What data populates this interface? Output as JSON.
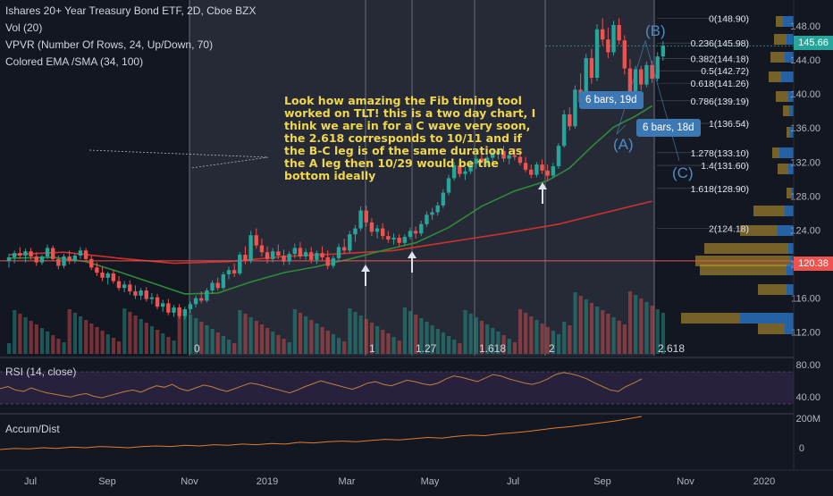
{
  "legend": {
    "title": "Ishares 20+ Year Treasury Bond ETF, 2D, Cboe BZX",
    "vol": "Vol (20)",
    "vpvr": "VPVR (Number Of Rows, 24, Up/Down, 70)",
    "ema": "Colored EMA /SMA (34, 100)"
  },
  "annotation": "Look how amazing the Fib timing tool worked on TLT! this is a two day chart, I think we are in for a C wave very soon, the 2.618 corresponds to 10/11 and if the B-C leg is of the same duration as the A leg then 10/29 would be the bottom ideally",
  "badges": {
    "b1": "6 bars, 19d",
    "b2": "6 bars, 18d"
  },
  "wave_labels": [
    "(A)",
    "(B)",
    "(C)"
  ],
  "fib_time_labels": [
    "0",
    "1",
    "1.27",
    "1.618",
    "2",
    "2.618"
  ],
  "fib_levels": [
    {
      "label": "0(148.90)",
      "price": 148.9
    },
    {
      "label": "0.236(145.98)",
      "price": 145.98
    },
    {
      "label": "0.382(144.18)",
      "price": 144.18
    },
    {
      "label": "0.5(142.72)",
      "price": 142.72
    },
    {
      "label": "0.618(141.26)",
      "price": 141.26
    },
    {
      "label": "0.786(139.19)",
      "price": 139.19
    },
    {
      "label": "1(136.54)",
      "price": 136.54
    },
    {
      "label": "1.278(133.10)",
      "price": 133.1
    },
    {
      "label": "1.4(131.60)",
      "price": 131.6
    },
    {
      "label": "1.618(128.90)",
      "price": 128.9
    },
    {
      "label": "2(124.18)",
      "price": 124.18
    }
  ],
  "price_axis": {
    "ticks": [
      "148.00",
      "144.00",
      "140.00",
      "136.00",
      "132.00",
      "128.00",
      "124.00",
      "120.00",
      "116.00",
      "112.00"
    ],
    "current_price": "145.66",
    "red_line_price": "120.38",
    "current_color": "#26a69a",
    "red_color": "#ef5350"
  },
  "rsi": {
    "label": "RSI (14, close)",
    "ticks": [
      "80.00",
      "40.00"
    ]
  },
  "accum": {
    "label": "Accum/Dist",
    "ticks": [
      "200M",
      "0"
    ]
  },
  "time_axis": [
    "Jul",
    "Sep",
    "Nov",
    "2019",
    "Mar",
    "May",
    "Jul",
    "Sep",
    "Nov",
    "2020"
  ],
  "chart_data": {
    "type": "candlestick",
    "ylim": [
      110.5,
      150.2
    ],
    "candles": [
      [
        120.4,
        121.2,
        119.6,
        120.8
      ],
      [
        120.8,
        121.6,
        120.1,
        121.3
      ],
      [
        121.3,
        122.0,
        120.6,
        121.0
      ],
      [
        121.0,
        121.8,
        120.2,
        121.5
      ],
      [
        121.5,
        121.9,
        120.5,
        120.9
      ],
      [
        120.9,
        121.4,
        119.8,
        120.2
      ],
      [
        120.2,
        121.1,
        119.9,
        120.9
      ],
      [
        120.9,
        122.3,
        120.6,
        121.9
      ],
      [
        121.9,
        122.2,
        120.4,
        120.6
      ],
      [
        120.6,
        121.0,
        119.4,
        119.8
      ],
      [
        119.8,
        121.2,
        119.5,
        120.9
      ],
      [
        120.9,
        121.6,
        120.0,
        120.4
      ],
      [
        120.4,
        121.3,
        120.1,
        121.0
      ],
      [
        121.0,
        122.0,
        120.6,
        121.6
      ],
      [
        121.6,
        121.9,
        120.3,
        120.6
      ],
      [
        120.6,
        121.0,
        119.3,
        119.6
      ],
      [
        119.6,
        120.2,
        118.6,
        119.0
      ],
      [
        119.0,
        119.7,
        118.0,
        118.4
      ],
      [
        118.4,
        119.1,
        117.6,
        118.9
      ],
      [
        118.9,
        119.3,
        117.7,
        118.0
      ],
      [
        118.0,
        118.6,
        116.9,
        117.2
      ],
      [
        117.2,
        118.0,
        116.7,
        117.6
      ],
      [
        117.6,
        118.1,
        116.4,
        116.8
      ],
      [
        116.8,
        117.5,
        115.9,
        116.3
      ],
      [
        116.3,
        117.2,
        115.8,
        116.9
      ],
      [
        116.9,
        117.3,
        115.6,
        115.9
      ],
      [
        115.9,
        116.6,
        115.3,
        116.1
      ],
      [
        116.1,
        116.5,
        114.7,
        115.0
      ],
      [
        115.0,
        115.8,
        114.4,
        115.4
      ],
      [
        115.4,
        115.9,
        114.0,
        114.3
      ],
      [
        114.3,
        115.2,
        113.8,
        114.9
      ],
      [
        114.9,
        115.3,
        113.6,
        113.9
      ],
      [
        113.9,
        115.0,
        113.5,
        114.7
      ],
      [
        114.7,
        115.6,
        114.2,
        115.3
      ],
      [
        115.3,
        116.3,
        114.9,
        116.0
      ],
      [
        116.0,
        116.8,
        115.4,
        115.7
      ],
      [
        115.7,
        117.2,
        115.5,
        116.9
      ],
      [
        116.9,
        118.1,
        116.5,
        117.8
      ],
      [
        117.8,
        118.4,
        116.9,
        117.2
      ],
      [
        117.2,
        119.1,
        117.0,
        118.8
      ],
      [
        118.8,
        119.7,
        118.2,
        119.3
      ],
      [
        119.3,
        120.1,
        118.5,
        118.9
      ],
      [
        118.9,
        121.4,
        118.7,
        121.1
      ],
      [
        121.1,
        122.1,
        120.0,
        120.4
      ],
      [
        120.4,
        123.9,
        120.1,
        123.4
      ],
      [
        123.4,
        124.2,
        121.8,
        122.2
      ],
      [
        122.2,
        123.0,
        120.9,
        121.4
      ],
      [
        121.4,
        122.1,
        120.1,
        120.6
      ],
      [
        120.6,
        121.9,
        120.2,
        121.5
      ],
      [
        121.5,
        122.3,
        120.6,
        121.0
      ],
      [
        121.0,
        121.7,
        119.9,
        120.3
      ],
      [
        120.3,
        121.5,
        119.9,
        121.2
      ],
      [
        121.2,
        122.4,
        120.7,
        121.9
      ],
      [
        121.9,
        122.6,
        120.6,
        120.9
      ],
      [
        120.9,
        121.8,
        120.5,
        121.4
      ],
      [
        121.4,
        122.0,
        120.1,
        120.5
      ],
      [
        120.5,
        121.6,
        120.0,
        121.3
      ],
      [
        121.3,
        122.1,
        120.4,
        120.8
      ],
      [
        120.8,
        121.6,
        119.4,
        119.8
      ],
      [
        119.8,
        121.0,
        119.5,
        120.7
      ],
      [
        120.7,
        122.4,
        120.4,
        122.0
      ],
      [
        122.0,
        123.0,
        121.2,
        121.6
      ],
      [
        121.6,
        123.9,
        121.3,
        123.5
      ],
      [
        123.5,
        124.6,
        122.6,
        124.2
      ],
      [
        124.2,
        126.8,
        123.9,
        126.3
      ],
      [
        126.3,
        126.9,
        124.4,
        124.9
      ],
      [
        124.9,
        125.4,
        123.3,
        123.8
      ],
      [
        123.8,
        124.6,
        123.0,
        124.2
      ],
      [
        124.2,
        124.8,
        122.9,
        123.3
      ],
      [
        123.3,
        123.9,
        122.5,
        122.9
      ],
      [
        122.9,
        123.6,
        122.3,
        123.1
      ],
      [
        123.1,
        123.5,
        122.1,
        122.5
      ],
      [
        122.5,
        123.5,
        122.2,
        123.2
      ],
      [
        123.2,
        124.3,
        122.9,
        123.9
      ],
      [
        123.9,
        124.4,
        123.0,
        123.6
      ],
      [
        123.6,
        125.1,
        123.3,
        124.7
      ],
      [
        124.7,
        126.2,
        124.4,
        125.8
      ],
      [
        125.8,
        126.6,
        125.2,
        126.1
      ],
      [
        126.1,
        127.3,
        125.7,
        126.9
      ],
      [
        126.9,
        128.8,
        126.6,
        128.4
      ],
      [
        128.4,
        130.5,
        128.1,
        130.1
      ],
      [
        130.1,
        132.0,
        129.8,
        131.6
      ],
      [
        131.6,
        132.3,
        130.2,
        130.6
      ],
      [
        130.6,
        131.4,
        129.9,
        130.9
      ],
      [
        130.9,
        132.2,
        130.6,
        131.8
      ],
      [
        131.8,
        132.9,
        131.2,
        132.4
      ],
      [
        132.4,
        133.3,
        131.8,
        132.1
      ],
      [
        132.1,
        132.8,
        131.5,
        132.5
      ],
      [
        132.5,
        133.4,
        132.0,
        132.9
      ],
      [
        132.9,
        133.6,
        132.3,
        133.3
      ],
      [
        133.3,
        133.9,
        132.0,
        132.4
      ],
      [
        132.4,
        133.1,
        131.7,
        132.8
      ],
      [
        132.8,
        133.6,
        132.2,
        132.6
      ],
      [
        132.6,
        133.4,
        131.6,
        131.9
      ],
      [
        131.9,
        132.6,
        130.8,
        131.1
      ],
      [
        131.1,
        131.7,
        130.1,
        130.5
      ],
      [
        130.5,
        132.0,
        130.2,
        131.7
      ],
      [
        131.7,
        132.3,
        130.6,
        131.0
      ],
      [
        131.0,
        131.7,
        129.8,
        130.4
      ],
      [
        130.4,
        131.9,
        130.1,
        131.5
      ],
      [
        131.5,
        134.2,
        131.2,
        133.9
      ],
      [
        133.9,
        138.1,
        133.7,
        137.6
      ],
      [
        137.6,
        138.4,
        135.7,
        136.2
      ],
      [
        136.2,
        141.0,
        135.9,
        140.5
      ],
      [
        140.5,
        142.4,
        138.4,
        139.0
      ],
      [
        139.0,
        144.7,
        138.8,
        144.2
      ],
      [
        144.2,
        145.3,
        141.2,
        141.9
      ],
      [
        141.9,
        148.2,
        141.5,
        147.6
      ],
      [
        147.6,
        148.9,
        145.7,
        146.4
      ],
      [
        146.4,
        147.8,
        144.2,
        144.9
      ],
      [
        144.9,
        148.6,
        144.5,
        148.1
      ],
      [
        148.1,
        148.9,
        145.8,
        146.3
      ],
      [
        146.3,
        146.9,
        142.3,
        143.0
      ],
      [
        143.0,
        144.1,
        139.6,
        140.3
      ],
      [
        140.3,
        143.3,
        139.9,
        142.9
      ],
      [
        142.9,
        143.3,
        140.4,
        141.1
      ],
      [
        141.1,
        143.8,
        140.8,
        143.4
      ],
      [
        143.4,
        143.9,
        141.3,
        141.8
      ],
      [
        141.8,
        144.9,
        141.5,
        144.4
      ],
      [
        144.4,
        146.2,
        143.9,
        145.66
      ]
    ],
    "sma100": [
      [
        0,
        121.1
      ],
      [
        10,
        121.4
      ],
      [
        20,
        120.7
      ],
      [
        30,
        120.1
      ],
      [
        40,
        120.3
      ],
      [
        50,
        120.9
      ],
      [
        60,
        121.2
      ],
      [
        70,
        121.6
      ],
      [
        80,
        122.6
      ],
      [
        90,
        123.6
      ],
      [
        100,
        124.7
      ],
      [
        110,
        126.3
      ],
      [
        117,
        127.4
      ]
    ],
    "ema34": [
      [
        0,
        120.7
      ],
      [
        8,
        120.8
      ],
      [
        14,
        120.3
      ],
      [
        20,
        119.1
      ],
      [
        26,
        117.8
      ],
      [
        32,
        116.5
      ],
      [
        38,
        116.6
      ],
      [
        44,
        117.9
      ],
      [
        50,
        119.0
      ],
      [
        56,
        119.7
      ],
      [
        62,
        120.6
      ],
      [
        68,
        121.6
      ],
      [
        74,
        122.5
      ],
      [
        80,
        124.3
      ],
      [
        86,
        126.8
      ],
      [
        92,
        128.6
      ],
      [
        98,
        129.8
      ],
      [
        102,
        131.3
      ],
      [
        106,
        133.8
      ],
      [
        110,
        136.1
      ],
      [
        114,
        137.4
      ],
      [
        117,
        138.6
      ]
    ]
  }
}
